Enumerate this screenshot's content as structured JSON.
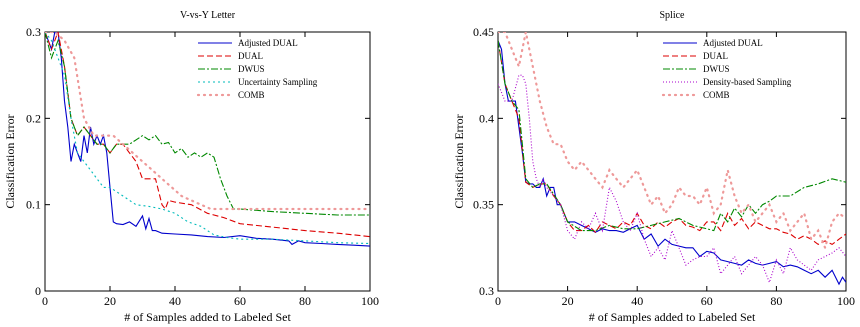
{
  "chart_data": [
    {
      "type": "line",
      "title": "V-vs-Y Letter",
      "xlabel": "# of Samples added to Labeled Set",
      "ylabel": "Classification Error",
      "xlim": [
        0,
        100
      ],
      "ylim": [
        0,
        0.3
      ],
      "xticks": [
        "0",
        "20",
        "40",
        "60",
        "80",
        "100"
      ],
      "yticks": [
        "0",
        "0.1",
        "0.2",
        "0.3"
      ],
      "ytick_values": [
        0,
        0.1,
        0.2,
        0.3
      ],
      "xtick_values": [
        0,
        20,
        40,
        60,
        80,
        100
      ],
      "legend_position": "top-right",
      "grid": false,
      "series": [
        {
          "name": "Adjusted DUAL",
          "color": "#0000cc",
          "dash": "",
          "x": [
            0,
            1,
            2,
            3,
            4,
            5,
            6,
            7,
            8,
            9,
            10,
            11,
            12,
            13,
            14,
            15,
            16,
            17,
            18,
            19,
            20,
            21,
            22,
            24,
            26,
            28,
            30,
            31,
            32,
            33,
            34,
            36,
            40,
            45,
            50,
            55,
            60,
            65,
            70,
            75,
            76,
            78,
            80,
            85,
            90,
            95,
            100
          ],
          "y": [
            0.3,
            0.29,
            0.28,
            0.3,
            0.3,
            0.27,
            0.22,
            0.19,
            0.15,
            0.17,
            0.16,
            0.15,
            0.18,
            0.16,
            0.19,
            0.17,
            0.18,
            0.17,
            0.18,
            0.16,
            0.12,
            0.08,
            0.078,
            0.077,
            0.08,
            0.075,
            0.087,
            0.072,
            0.084,
            0.07,
            0.07,
            0.067,
            0.066,
            0.065,
            0.063,
            0.062,
            0.064,
            0.061,
            0.06,
            0.058,
            0.054,
            0.058,
            0.056,
            0.055,
            0.054,
            0.053,
            0.052
          ]
        },
        {
          "name": "DUAL",
          "color": "#dd0000",
          "dash": "6,3",
          "x": [
            0,
            2,
            4,
            6,
            8,
            10,
            12,
            14,
            16,
            18,
            20,
            22,
            24,
            26,
            28,
            30,
            32,
            34,
            36,
            37,
            38,
            40,
            45,
            50,
            55,
            60,
            70,
            80,
            90,
            100
          ],
          "y": [
            0.3,
            0.28,
            0.3,
            0.26,
            0.2,
            0.18,
            0.19,
            0.18,
            0.17,
            0.17,
            0.16,
            0.17,
            0.17,
            0.16,
            0.15,
            0.13,
            0.13,
            0.13,
            0.1,
            0.095,
            0.105,
            0.103,
            0.1,
            0.09,
            0.085,
            0.078,
            0.074,
            0.07,
            0.067,
            0.063
          ]
        },
        {
          "name": "DWUS",
          "color": "#008800",
          "dash": "7,2,2,2",
          "x": [
            0,
            2,
            4,
            6,
            8,
            10,
            12,
            14,
            16,
            18,
            20,
            22,
            24,
            26,
            28,
            30,
            32,
            34,
            36,
            38,
            40,
            42,
            44,
            46,
            48,
            50,
            52,
            54,
            56,
            58,
            60,
            70,
            80,
            90,
            100
          ],
          "y": [
            0.3,
            0.27,
            0.29,
            0.26,
            0.2,
            0.18,
            0.19,
            0.18,
            0.17,
            0.17,
            0.16,
            0.17,
            0.17,
            0.17,
            0.175,
            0.18,
            0.175,
            0.18,
            0.17,
            0.172,
            0.16,
            0.165,
            0.155,
            0.16,
            0.155,
            0.16,
            0.155,
            0.13,
            0.11,
            0.095,
            0.095,
            0.092,
            0.09,
            0.088,
            0.088
          ]
        },
        {
          "name": "Uncertainty Sampling",
          "color": "#00bbbb",
          "dash": "2,3",
          "x": [
            0,
            2,
            4,
            6,
            8,
            10,
            12,
            14,
            16,
            18,
            20,
            24,
            28,
            32,
            36,
            40,
            44,
            48,
            52,
            56,
            60,
            70,
            80,
            90,
            100
          ],
          "y": [
            0.3,
            0.29,
            0.27,
            0.25,
            0.2,
            0.16,
            0.15,
            0.14,
            0.13,
            0.12,
            0.12,
            0.11,
            0.1,
            0.098,
            0.095,
            0.09,
            0.08,
            0.075,
            0.065,
            0.062,
            0.06,
            0.06,
            0.058,
            0.056,
            0.055
          ]
        },
        {
          "name": "COMB",
          "color": "#ee9999",
          "dash": "1,5",
          "x": [
            0,
            3,
            6,
            9,
            12,
            15,
            18,
            21,
            24,
            27,
            30,
            33,
            36,
            39,
            42,
            45,
            48,
            51,
            54,
            57,
            60,
            70,
            80,
            90,
            100
          ],
          "y": [
            0.3,
            0.3,
            0.29,
            0.27,
            0.2,
            0.18,
            0.18,
            0.18,
            0.17,
            0.16,
            0.15,
            0.14,
            0.13,
            0.12,
            0.11,
            0.105,
            0.1,
            0.095,
            0.095,
            0.095,
            0.095,
            0.095,
            0.095,
            0.095,
            0.095
          ]
        }
      ]
    },
    {
      "type": "line",
      "title": "Splice",
      "xlabel": "# of Samples added to Labeled Set",
      "ylabel": "Classification Error",
      "xlim": [
        0,
        100
      ],
      "ylim": [
        0.3,
        0.45
      ],
      "xticks": [
        "0",
        "20",
        "40",
        "60",
        "80",
        "100"
      ],
      "yticks": [
        "0.3",
        "0.35",
        "0.4",
        "0.45"
      ],
      "ytick_values": [
        0.3,
        0.35,
        0.4,
        0.45
      ],
      "xtick_values": [
        0,
        20,
        40,
        60,
        80,
        100
      ],
      "legend_position": "top-right",
      "grid": false,
      "series": [
        {
          "name": "Adjusted DUAL",
          "color": "#0000cc",
          "dash": "",
          "x": [
            0,
            1,
            2,
            3,
            4,
            5,
            6,
            7,
            8,
            9,
            10,
            11,
            12,
            13,
            14,
            15,
            16,
            17,
            18,
            19,
            20,
            22,
            24,
            26,
            28,
            30,
            32,
            34,
            36,
            38,
            40,
            42,
            44,
            46,
            48,
            50,
            52,
            54,
            56,
            58,
            60,
            62,
            64,
            66,
            68,
            70,
            72,
            74,
            76,
            78,
            80,
            82,
            84,
            86,
            88,
            90,
            92,
            94,
            96,
            98,
            99,
            100
          ],
          "y": [
            0.445,
            0.44,
            0.42,
            0.41,
            0.41,
            0.41,
            0.395,
            0.38,
            0.363,
            0.362,
            0.362,
            0.36,
            0.36,
            0.365,
            0.355,
            0.36,
            0.36,
            0.35,
            0.35,
            0.345,
            0.34,
            0.34,
            0.338,
            0.336,
            0.334,
            0.336,
            0.335,
            0.335,
            0.334,
            0.336,
            0.338,
            0.33,
            0.333,
            0.326,
            0.33,
            0.327,
            0.326,
            0.325,
            0.325,
            0.32,
            0.323,
            0.322,
            0.318,
            0.317,
            0.316,
            0.315,
            0.318,
            0.316,
            0.315,
            0.316,
            0.317,
            0.314,
            0.315,
            0.314,
            0.312,
            0.31,
            0.312,
            0.308,
            0.312,
            0.304,
            0.308,
            0.305
          ]
        },
        {
          "name": "DUAL",
          "color": "#dd0000",
          "dash": "6,3",
          "x": [
            0,
            2,
            4,
            6,
            8,
            10,
            12,
            14,
            16,
            18,
            20,
            22,
            24,
            26,
            28,
            30,
            32,
            34,
            36,
            38,
            40,
            42,
            44,
            46,
            48,
            50,
            52,
            54,
            56,
            58,
            60,
            62,
            64,
            66,
            68,
            70,
            72,
            74,
            76,
            78,
            80,
            82,
            84,
            86,
            88,
            90,
            92,
            94,
            96,
            98,
            100
          ],
          "y": [
            0.445,
            0.42,
            0.41,
            0.4,
            0.363,
            0.36,
            0.362,
            0.362,
            0.355,
            0.35,
            0.34,
            0.335,
            0.335,
            0.338,
            0.334,
            0.34,
            0.338,
            0.336,
            0.34,
            0.338,
            0.345,
            0.338,
            0.336,
            0.34,
            0.337,
            0.34,
            0.342,
            0.338,
            0.337,
            0.335,
            0.34,
            0.34,
            0.335,
            0.345,
            0.338,
            0.342,
            0.336,
            0.34,
            0.338,
            0.336,
            0.336,
            0.334,
            0.333,
            0.33,
            0.332,
            0.33,
            0.327,
            0.329,
            0.327,
            0.33,
            0.333
          ]
        },
        {
          "name": "DWUS",
          "color": "#008800",
          "dash": "7,2,2,2",
          "x": [
            0,
            2,
            4,
            6,
            8,
            10,
            12,
            14,
            16,
            18,
            20,
            24,
            28,
            32,
            36,
            40,
            44,
            48,
            52,
            56,
            60,
            62,
            64,
            66,
            68,
            70,
            72,
            74,
            76,
            78,
            80,
            84,
            88,
            92,
            96,
            100
          ],
          "y": [
            0.445,
            0.42,
            0.41,
            0.405,
            0.365,
            0.36,
            0.362,
            0.362,
            0.356,
            0.35,
            0.34,
            0.335,
            0.335,
            0.338,
            0.336,
            0.336,
            0.338,
            0.34,
            0.342,
            0.338,
            0.336,
            0.335,
            0.345,
            0.34,
            0.348,
            0.343,
            0.35,
            0.345,
            0.35,
            0.352,
            0.355,
            0.355,
            0.36,
            0.362,
            0.365,
            0.363
          ]
        },
        {
          "name": "Density-based Sampling",
          "color": "#aa00cc",
          "dash": "1,2",
          "x": [
            0,
            2,
            4,
            6,
            7,
            8,
            9,
            10,
            11,
            12,
            13,
            14,
            16,
            18,
            20,
            22,
            24,
            26,
            28,
            30,
            32,
            34,
            36,
            38,
            40,
            42,
            44,
            46,
            48,
            50,
            52,
            54,
            56,
            58,
            60,
            62,
            64,
            66,
            68,
            70,
            72,
            74,
            76,
            78,
            80,
            82,
            84,
            86,
            88,
            90,
            92,
            94,
            96,
            98,
            100
          ],
          "y": [
            0.42,
            0.41,
            0.41,
            0.425,
            0.425,
            0.42,
            0.4,
            0.375,
            0.365,
            0.36,
            0.365,
            0.36,
            0.355,
            0.35,
            0.335,
            0.33,
            0.34,
            0.336,
            0.345,
            0.335,
            0.36,
            0.352,
            0.34,
            0.335,
            0.345,
            0.33,
            0.32,
            0.325,
            0.318,
            0.335,
            0.325,
            0.315,
            0.318,
            0.32,
            0.32,
            0.325,
            0.31,
            0.315,
            0.32,
            0.31,
            0.315,
            0.32,
            0.315,
            0.305,
            0.318,
            0.31,
            0.325,
            0.318,
            0.315,
            0.312,
            0.318,
            0.32,
            0.322,
            0.325,
            0.32
          ]
        },
        {
          "name": "COMB",
          "color": "#ee9999",
          "dash": "1,5",
          "x": [
            0,
            2,
            4,
            6,
            8,
            10,
            12,
            14,
            16,
            18,
            20,
            22,
            24,
            26,
            28,
            30,
            32,
            34,
            36,
            38,
            40,
            42,
            44,
            46,
            48,
            50,
            52,
            54,
            56,
            58,
            60,
            62,
            64,
            66,
            68,
            70,
            72,
            74,
            76,
            78,
            80,
            82,
            84,
            86,
            88,
            90,
            92,
            94,
            96,
            98,
            100
          ],
          "y": [
            0.45,
            0.45,
            0.44,
            0.43,
            0.45,
            0.43,
            0.41,
            0.395,
            0.385,
            0.385,
            0.375,
            0.37,
            0.375,
            0.37,
            0.365,
            0.36,
            0.37,
            0.365,
            0.36,
            0.365,
            0.37,
            0.36,
            0.35,
            0.355,
            0.345,
            0.35,
            0.36,
            0.355,
            0.355,
            0.35,
            0.36,
            0.345,
            0.35,
            0.37,
            0.355,
            0.345,
            0.35,
            0.34,
            0.345,
            0.35,
            0.34,
            0.345,
            0.335,
            0.34,
            0.345,
            0.33,
            0.335,
            0.325,
            0.34,
            0.345,
            0.342
          ]
        }
      ]
    }
  ]
}
